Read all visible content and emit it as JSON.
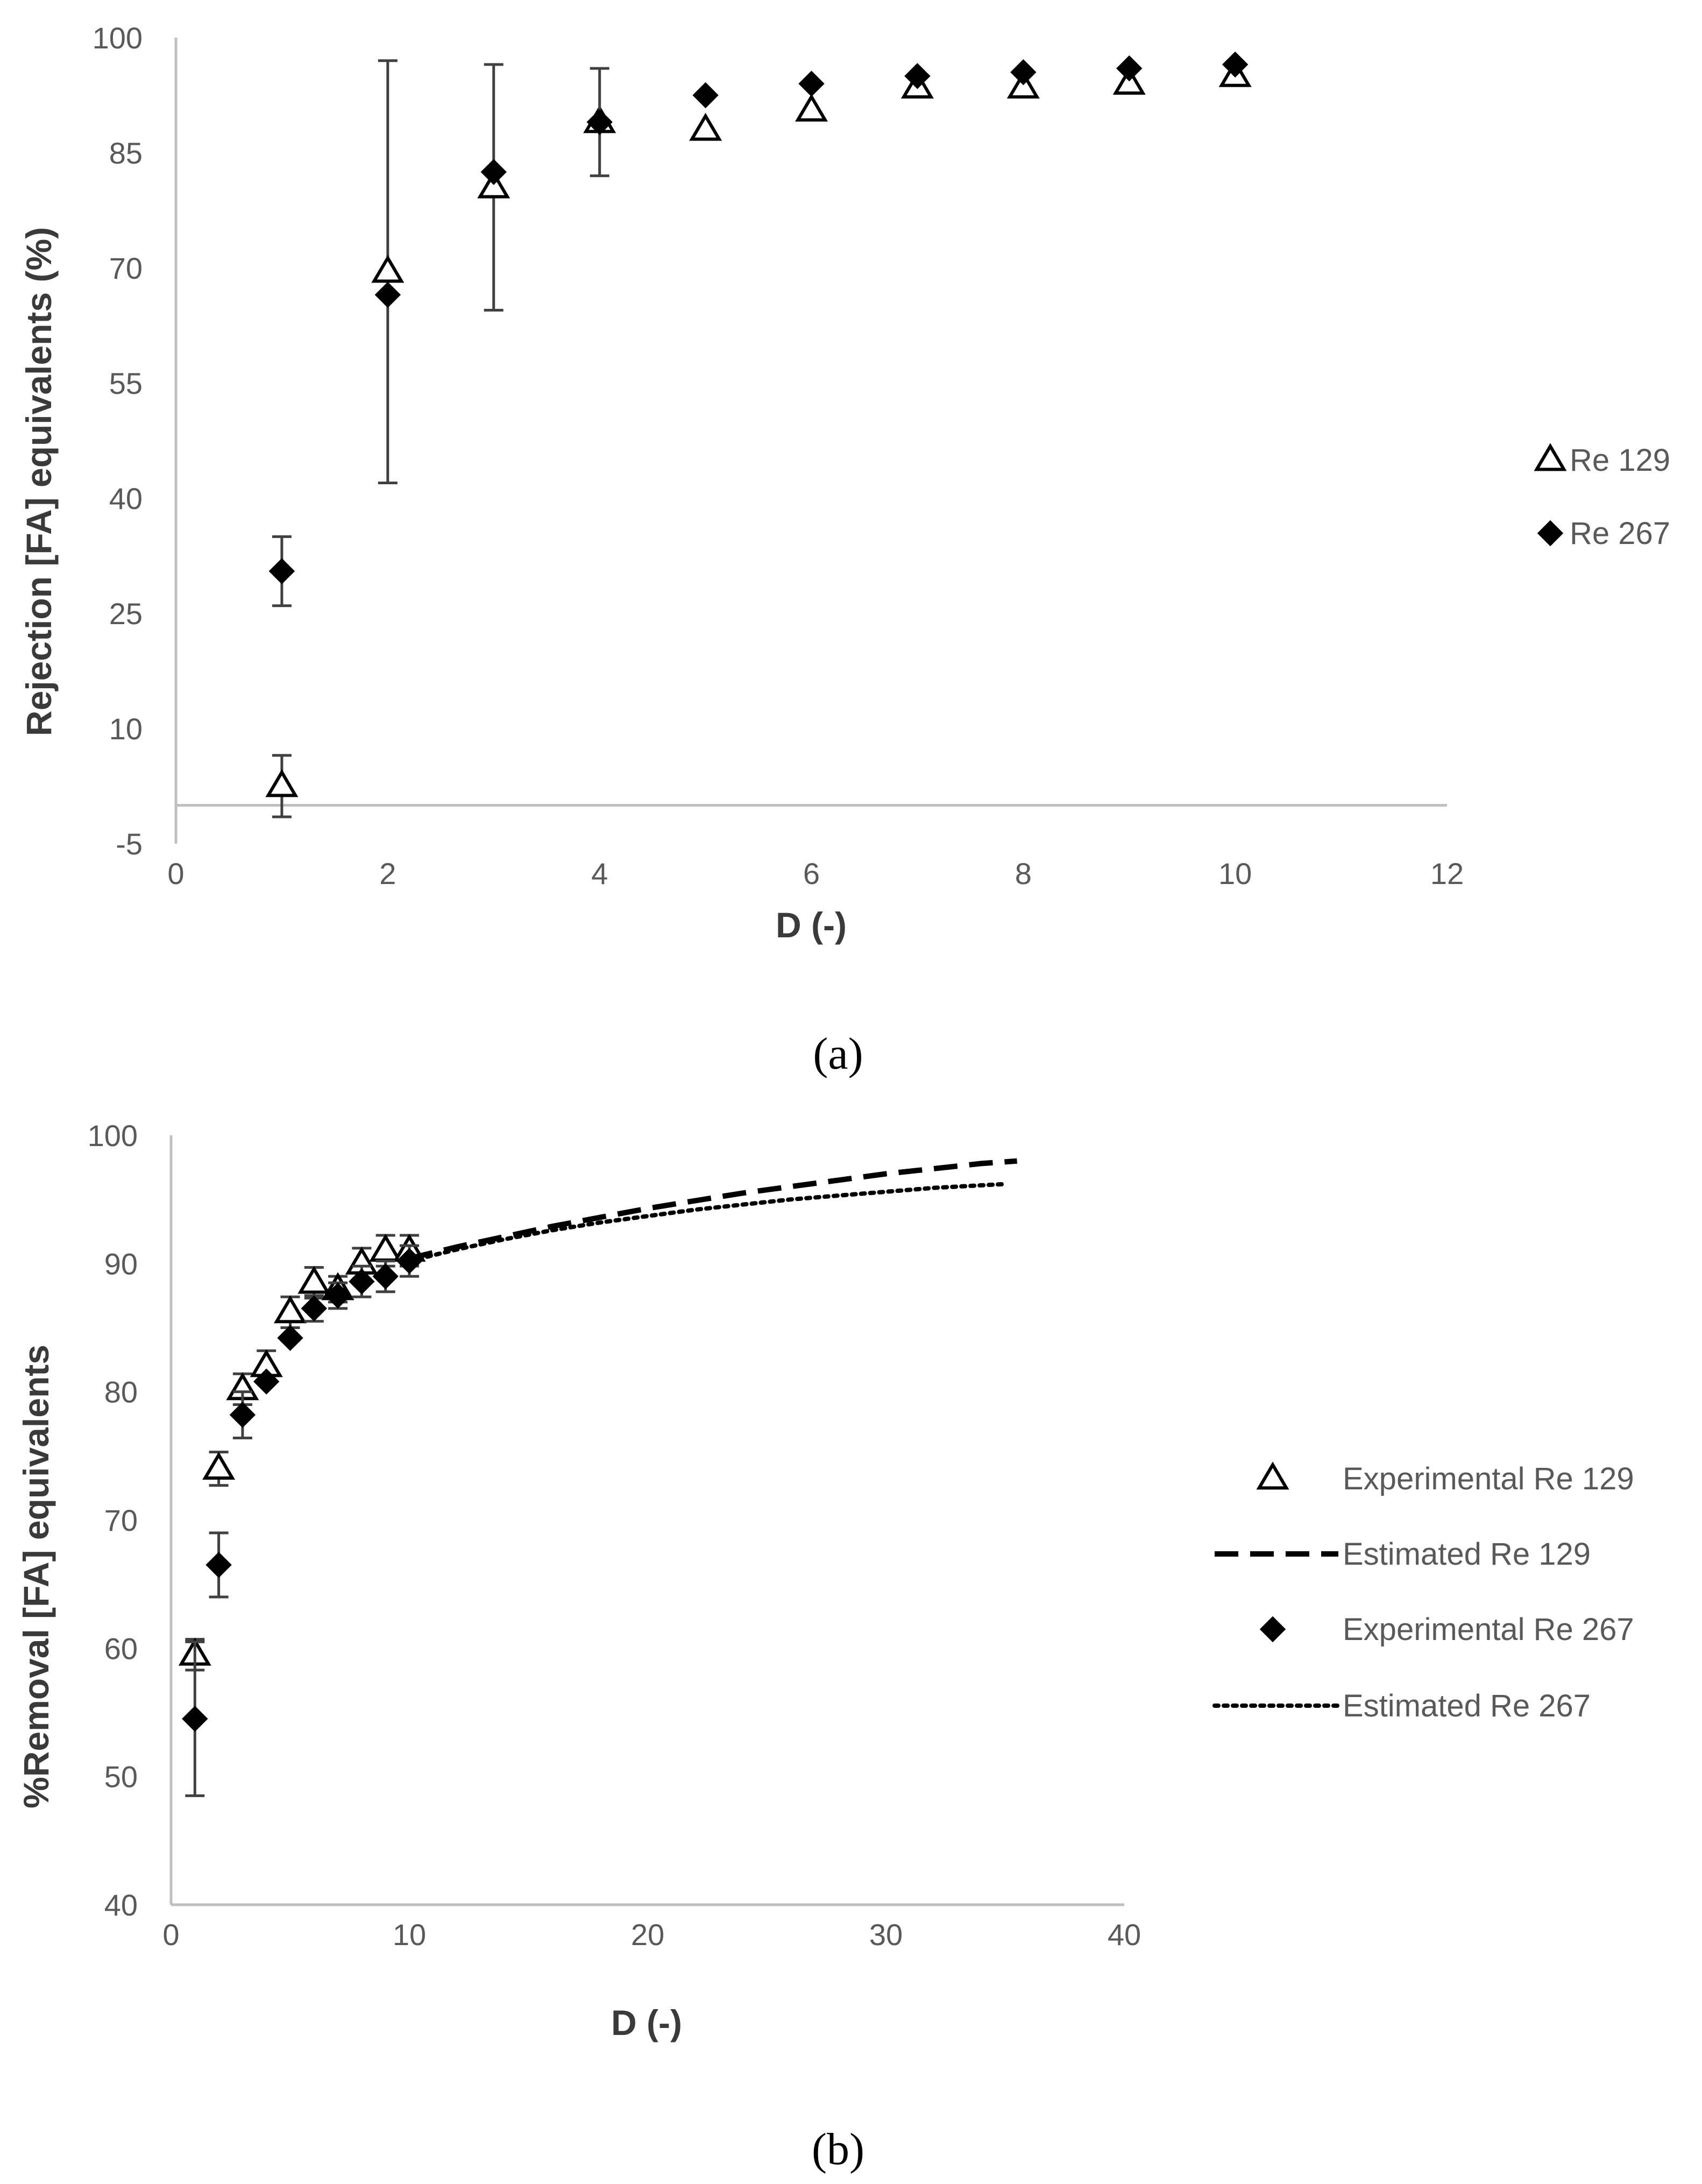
{
  "colors": {
    "axis": "#bfbfbf",
    "tick_text": "#595959",
    "marker": "#000000",
    "error_bar": "#404040"
  },
  "chart_data": [
    {
      "id": "a",
      "type": "scatter",
      "caption": "(a)",
      "xlabel": "D (-)",
      "ylabel": "Rejection [FA] equivalents (%)",
      "xlim": [
        0,
        12
      ],
      "ylim": [
        -5,
        100
      ],
      "xaxis_crosses_at": 0,
      "xticks": [
        0,
        2,
        4,
        6,
        8,
        10,
        12
      ],
      "yticks": [
        -5,
        10,
        25,
        40,
        55,
        70,
        85,
        100
      ],
      "legend_position": "right",
      "series": [
        {
          "name": "Re 129",
          "marker": "triangle-open",
          "points": [
            {
              "x": 1,
              "y": 2.5,
              "err": 4
            },
            {
              "x": 2,
              "y": 69.5,
              "err": 27.5
            },
            {
              "x": 3,
              "y": 80.5,
              "err": 16
            },
            {
              "x": 4,
              "y": 89
            },
            {
              "x": 5,
              "y": 88
            },
            {
              "x": 6,
              "y": 90.5
            },
            {
              "x": 7,
              "y": 93.5
            },
            {
              "x": 8,
              "y": 93.5
            },
            {
              "x": 9,
              "y": 94
            },
            {
              "x": 10,
              "y": 95
            }
          ]
        },
        {
          "name": "Re 267",
          "marker": "diamond-filled",
          "points": [
            {
              "x": 1,
              "y": 30.5,
              "err": 4.5
            },
            {
              "x": 2,
              "y": 66.5
            },
            {
              "x": 3,
              "y": 82.5
            },
            {
              "x": 4,
              "y": 89,
              "err": 7
            },
            {
              "x": 5,
              "y": 92.5
            },
            {
              "x": 6,
              "y": 94
            },
            {
              "x": 7,
              "y": 95
            },
            {
              "x": 8,
              "y": 95.5
            },
            {
              "x": 9,
              "y": 96
            },
            {
              "x": 10,
              "y": 96.5
            }
          ]
        }
      ]
    },
    {
      "id": "b",
      "type": "scatter",
      "caption": "(b)",
      "xlabel": "D (-)",
      "ylabel": "%Removal [FA] equivalents",
      "xlim": [
        0,
        40
      ],
      "ylim": [
        40,
        100
      ],
      "xticks": [
        0,
        10,
        20,
        30,
        40
      ],
      "yticks": [
        40,
        50,
        60,
        70,
        80,
        90,
        100
      ],
      "legend_position": "right",
      "series": [
        {
          "name": "Experimental Re 129",
          "marker": "triangle-open",
          "points": [
            {
              "x": 1,
              "y": 59.5,
              "err": 1.2
            },
            {
              "x": 2,
              "y": 74,
              "err": 1.3
            },
            {
              "x": 3,
              "y": 80.2,
              "err": 1.2
            },
            {
              "x": 4,
              "y": 82,
              "err": 1.2
            },
            {
              "x": 5,
              "y": 86.2,
              "err": 1.2
            },
            {
              "x": 6,
              "y": 88.5,
              "err": 1.2
            },
            {
              "x": 7,
              "y": 88,
              "err": 1
            },
            {
              "x": 8,
              "y": 90,
              "err": 1.2
            },
            {
              "x": 9,
              "y": 91,
              "err": 1.2
            },
            {
              "x": 10,
              "y": 91,
              "err": 1.2
            }
          ]
        },
        {
          "name": "Estimated Re 129",
          "line": "dashed",
          "points": [
            {
              "x": 10,
              "y": 90.4
            },
            {
              "x": 12,
              "y": 91.3
            },
            {
              "x": 14,
              "y": 92.1
            },
            {
              "x": 16,
              "y": 92.9
            },
            {
              "x": 18,
              "y": 93.6
            },
            {
              "x": 20,
              "y": 94.3
            },
            {
              "x": 22,
              "y": 94.9
            },
            {
              "x": 24,
              "y": 95.5
            },
            {
              "x": 26,
              "y": 96
            },
            {
              "x": 28,
              "y": 96.5
            },
            {
              "x": 30,
              "y": 97
            },
            {
              "x": 32,
              "y": 97.4
            },
            {
              "x": 34,
              "y": 97.8
            },
            {
              "x": 35.5,
              "y": 98
            }
          ]
        },
        {
          "name": "Experimental Re 267",
          "marker": "diamond-filled",
          "points": [
            {
              "x": 1,
              "y": 54.5,
              "err": 6
            },
            {
              "x": 2,
              "y": 66.5,
              "err": 2.5
            },
            {
              "x": 3,
              "y": 78.2,
              "err": 1.8
            },
            {
              "x": 4,
              "y": 80.8
            },
            {
              "x": 5,
              "y": 84.2
            },
            {
              "x": 6,
              "y": 86.5,
              "err": 1
            },
            {
              "x": 7,
              "y": 87.5,
              "err": 1
            },
            {
              "x": 8,
              "y": 88.6,
              "err": 1.2
            },
            {
              "x": 9,
              "y": 89,
              "err": 1.2
            },
            {
              "x": 10,
              "y": 90.2,
              "err": 1.2
            }
          ]
        },
        {
          "name": "Estimated Re 267",
          "line": "dotted",
          "points": [
            {
              "x": 10,
              "y": 90.2
            },
            {
              "x": 12,
              "y": 91.1
            },
            {
              "x": 14,
              "y": 91.9
            },
            {
              "x": 16,
              "y": 92.6
            },
            {
              "x": 18,
              "y": 93.2
            },
            {
              "x": 20,
              "y": 93.7
            },
            {
              "x": 22,
              "y": 94.2
            },
            {
              "x": 24,
              "y": 94.6
            },
            {
              "x": 26,
              "y": 95
            },
            {
              "x": 28,
              "y": 95.3
            },
            {
              "x": 30,
              "y": 95.6
            },
            {
              "x": 32,
              "y": 95.9
            },
            {
              "x": 34,
              "y": 96.1
            },
            {
              "x": 35,
              "y": 96.2
            }
          ]
        }
      ]
    }
  ]
}
